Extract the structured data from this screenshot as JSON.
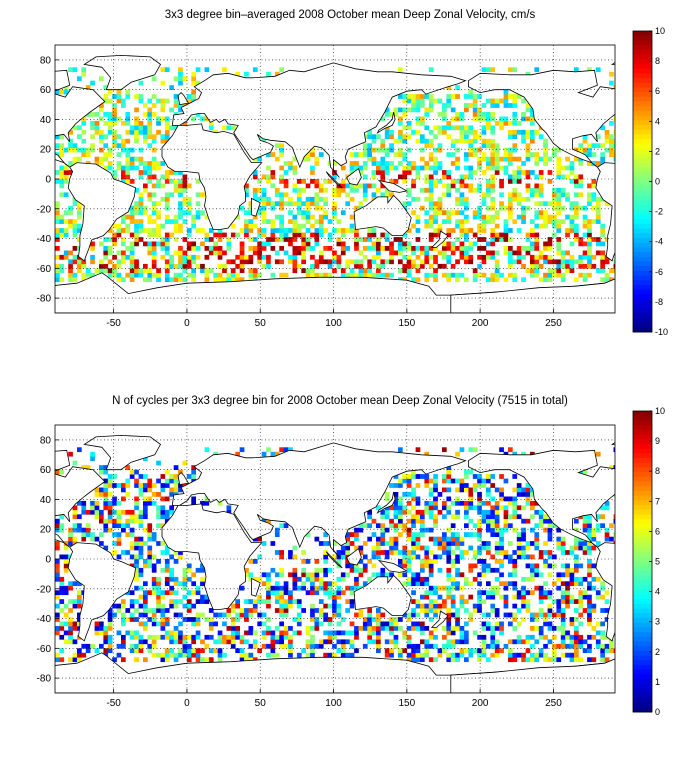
{
  "chart_data": [
    {
      "type": "heatmap",
      "title": "3x3 degree bin–averaged 2008 October mean Deep Zonal Velocity, cm/s",
      "xlabel": "",
      "ylabel": "",
      "xlim": [
        -90,
        292
      ],
      "ylim": [
        -90,
        90
      ],
      "x_ticks": [
        "-50",
        "0",
        "50",
        "100",
        "150",
        "200",
        "250"
      ],
      "y_ticks": [
        "80",
        "60",
        "40",
        "20",
        "0",
        "-20",
        "-40",
        "-60",
        "-80"
      ],
      "grid": "dotted",
      "bin_size_deg": 3,
      "colorbar": {
        "range": [
          -10,
          10
        ],
        "ticks": [
          "10",
          "8",
          "6",
          "4",
          "2",
          "0",
          "-2",
          "-4",
          "-6",
          "-8",
          "-10"
        ],
        "colormap": "jet"
      }
    },
    {
      "type": "heatmap",
      "title": "N of cycles per 3x3 degree bin for 2008 October mean Deep Zonal Velocity (7515 in total)",
      "xlabel": "",
      "ylabel": "",
      "xlim": [
        -90,
        292
      ],
      "ylim": [
        -90,
        90
      ],
      "x_ticks": [
        "-50",
        "0",
        "50",
        "100",
        "150",
        "200",
        "250"
      ],
      "y_ticks": [
        "80",
        "60",
        "40",
        "20",
        "0",
        "-20",
        "-40",
        "-60",
        "-80"
      ],
      "grid": "dotted",
      "bin_size_deg": 3,
      "total_cycles": 7515,
      "colorbar": {
        "range": [
          0,
          10
        ],
        "ticks": [
          "10",
          "9",
          "8",
          "7",
          "6",
          "5",
          "4",
          "3",
          "2",
          "1",
          "0"
        ],
        "colormap": "jet"
      }
    }
  ]
}
